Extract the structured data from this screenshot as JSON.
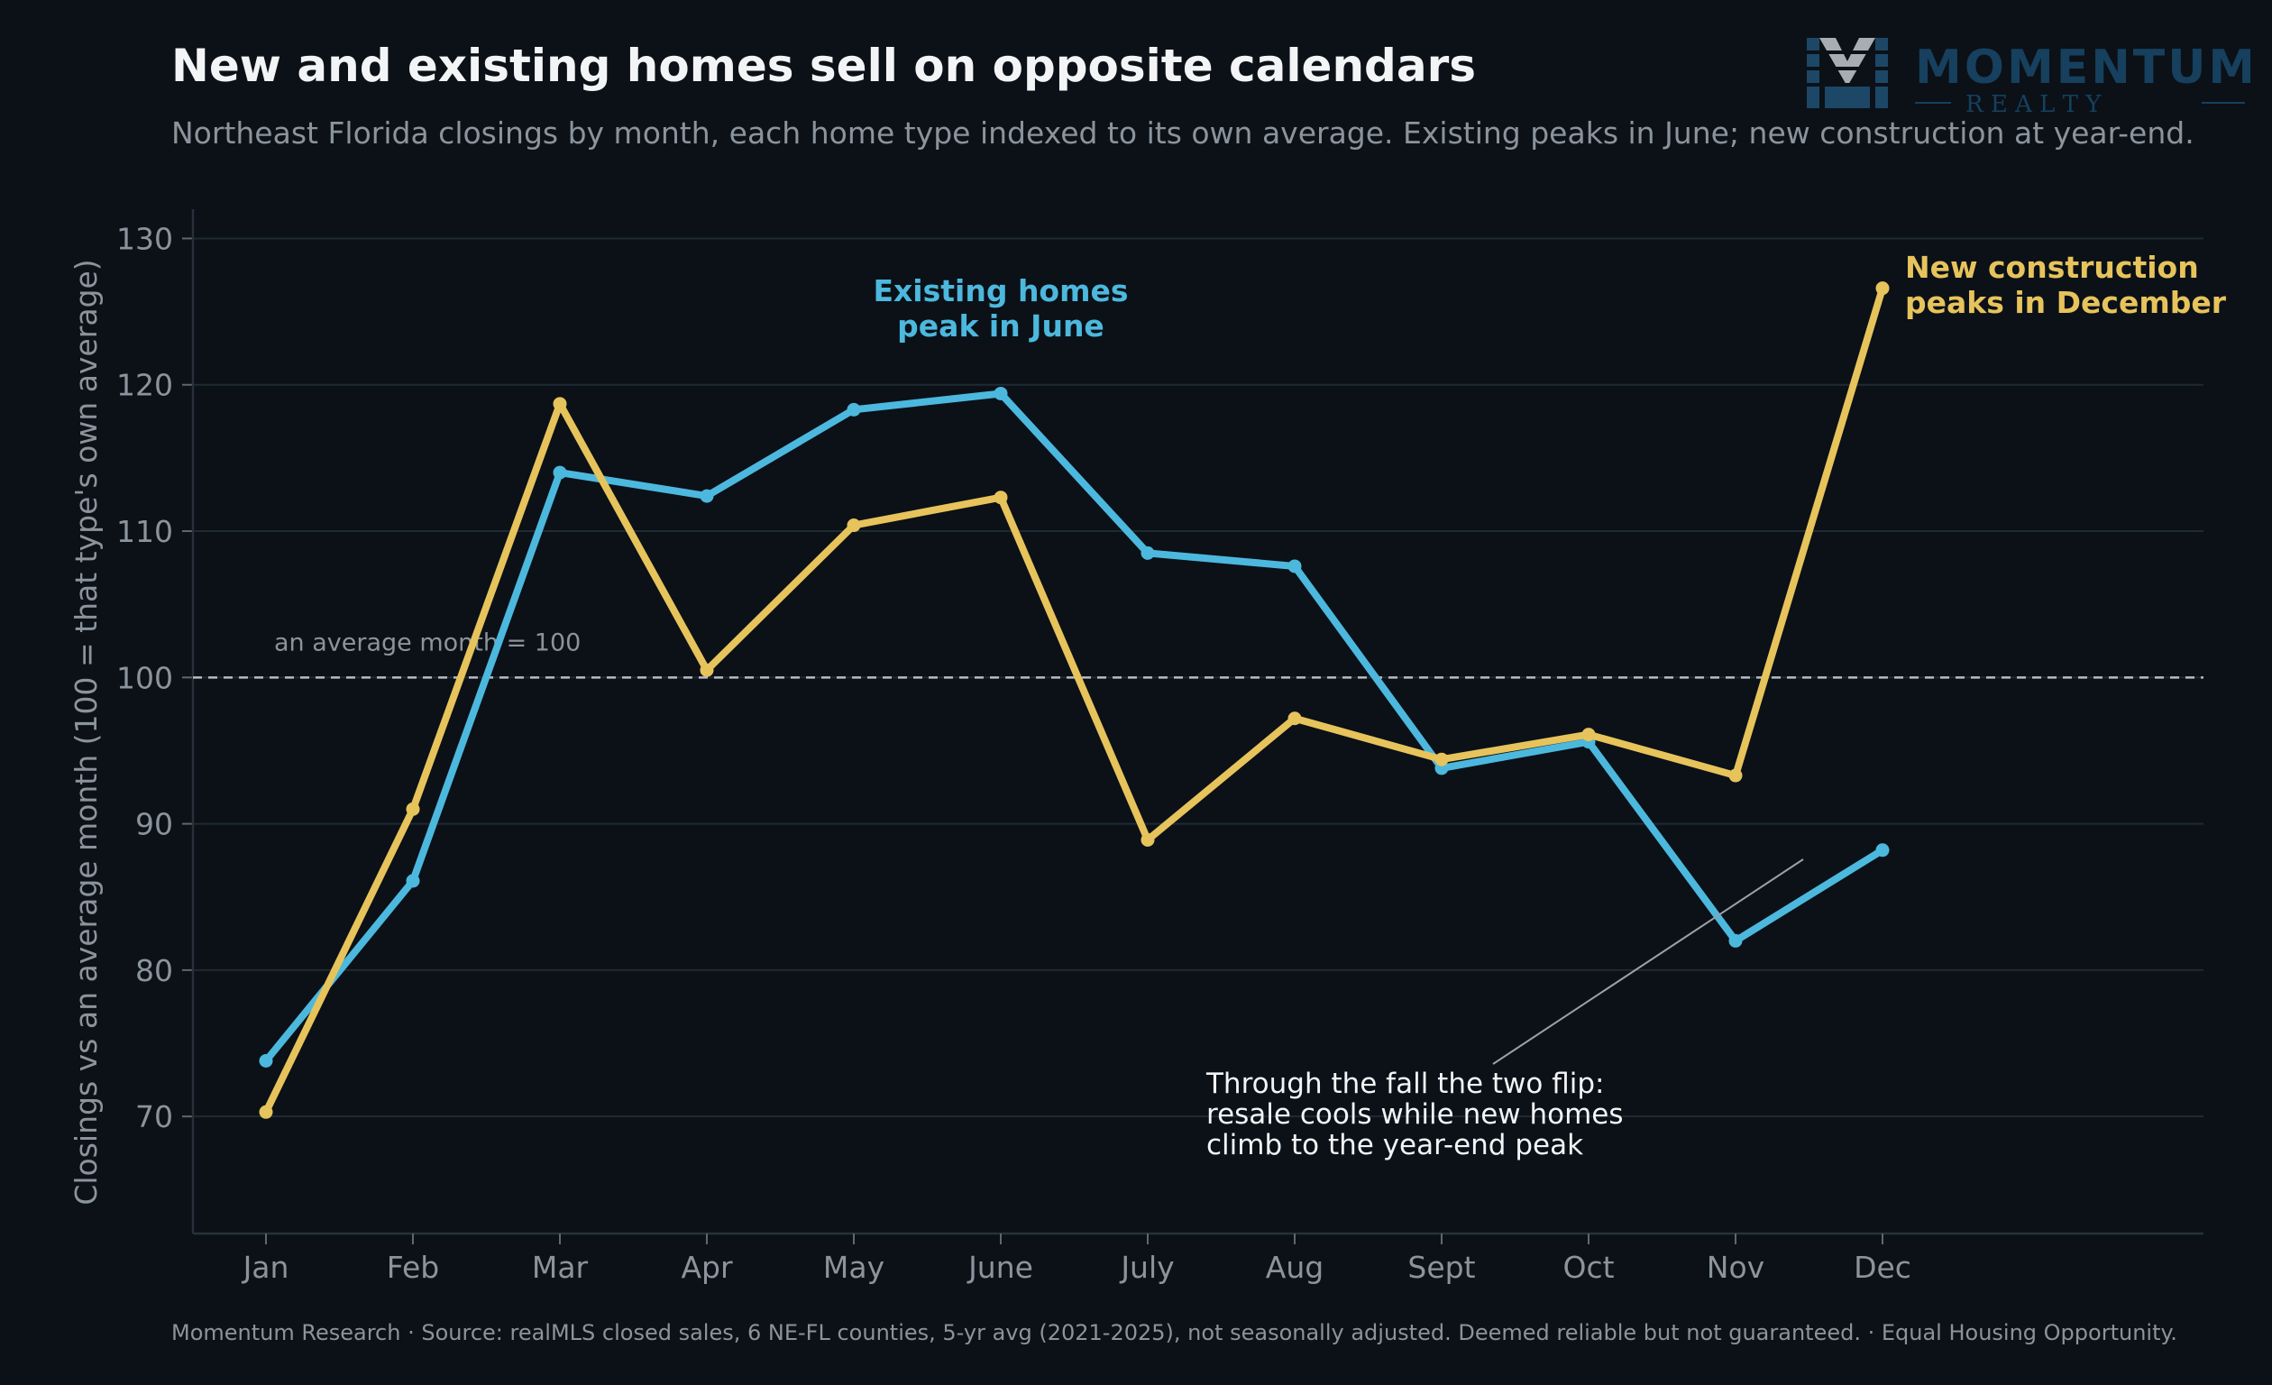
{
  "header": {
    "title": "New and existing homes sell on opposite calendars",
    "subtitle": "Northeast Florida closings by month, each home type indexed to its own average. Existing peaks in June; new construction at year-end."
  },
  "logo": {
    "monogram": "M",
    "name": "MOMENTUM",
    "tagline": "R E A L T Y",
    "colors": {
      "name": "#16405e",
      "monogram_light": "#a9adb2",
      "monogram_dark": "#1d4766"
    }
  },
  "footer": {
    "text": "Momentum Research  ·  Source: realMLS closed sales, 6 NE-FL counties, 5-yr avg (2021-2025), not seasonally adjusted. Deemed reliable but not guaranteed.  ·  Equal Housing Opportunity."
  },
  "chart_data": {
    "type": "line",
    "title": "New and existing homes sell on opposite calendars",
    "subtitle": "Northeast Florida closings by month, each home type indexed to its own average. Existing peaks in June; new construction at year-end.",
    "xlabel": "",
    "ylabel": "Closings vs an average month (100 = that type's own average)",
    "categories": [
      "Jan",
      "Feb",
      "Mar",
      "Apr",
      "May",
      "June",
      "July",
      "Aug",
      "Sept",
      "Oct",
      "Nov",
      "Dec"
    ],
    "ylim": [
      62,
      132
    ],
    "yticks": [
      70,
      80,
      90,
      100,
      110,
      120,
      130
    ],
    "grid": true,
    "legend": "none",
    "series": [
      {
        "key": "existing",
        "color": "#4cb8de",
        "values": [
          73.8,
          86.1,
          114.0,
          112.4,
          118.3,
          119.4,
          108.5,
          107.6,
          93.8,
          95.6,
          82.0,
          88.2
        ]
      },
      {
        "key": "new",
        "color": "#e7c35c",
        "values": [
          70.3,
          91.0,
          118.7,
          100.5,
          110.4,
          112.3,
          88.9,
          97.2,
          94.4,
          96.1,
          93.3,
          126.6
        ]
      }
    ],
    "reference_line": {
      "y": 100,
      "label": "an average month = 100"
    },
    "annotations": [
      {
        "series": "existing",
        "lines": [
          "Existing homes",
          "peak in June"
        ],
        "color": "#4cb8de",
        "x": "June",
        "y": 125
      },
      {
        "series": "new",
        "lines": [
          "New construction",
          "peaks in December"
        ],
        "color": "#e7c35c",
        "x": "Dec",
        "y": 127
      },
      {
        "series": "",
        "lines": [
          "Through the fall the two flip:",
          "resale cools while new homes",
          "climb to the year-end peak"
        ],
        "color": "#f2f4f6",
        "x": "July",
        "y": 73
      }
    ]
  }
}
